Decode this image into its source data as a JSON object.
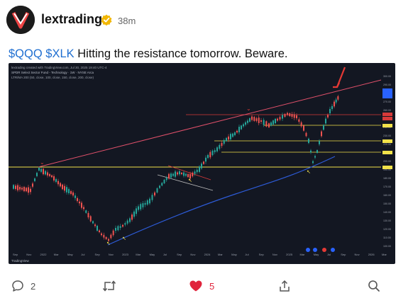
{
  "post": {
    "username": "lextrading",
    "time_ago": "38m",
    "tickers": [
      "$QQQ",
      "$XLK"
    ],
    "text": "Hitting the resistance tomorrow. Beware."
  },
  "chart_image": {
    "header_line_1": "lextrading created with TradingView.com, Jul 30, 2025 19:40 UTC-4",
    "header_line_2": "SPDR Select Sector Fund - Technology  ·  1W  ·  NYSE Arca",
    "header_line_3": "LTR/MA 200 (50, close, 100, close, 150, close, 200, close)",
    "footer_brand": "TradingView",
    "x_ticks": [
      "Sep",
      "Nov",
      "2022",
      "Mar",
      "May",
      "Jul",
      "Sep",
      "Nov",
      "2023",
      "Mar",
      "May",
      "Jul",
      "Sep",
      "Nov",
      "2024",
      "Mar",
      "May",
      "Jul",
      "Sep",
      "Nov",
      "2025",
      "Mar",
      "May",
      "Jul",
      "Sep",
      "Nov",
      "2026",
      "Mar"
    ],
    "price_labels": [
      "300.00",
      "290.00",
      "280.00",
      "270.00",
      "260.00",
      "250.00",
      "240.00",
      "230.00",
      "220.00",
      "210.00",
      "200.00",
      "190.00",
      "180.00",
      "170.00",
      "160.00",
      "150.00",
      "140.00",
      "130.00",
      "120.00",
      "110.00",
      "100.00"
    ],
    "colors": {
      "up": "#26a69a",
      "down": "#ef5350",
      "resistance": "#e0506a",
      "levels": "#f2e24a",
      "ma": "#2d5bd7",
      "annotation": "#e53935",
      "pointer": "#f2e24a"
    }
  },
  "actions": {
    "replies": "2",
    "reposts": "",
    "likes": "5",
    "colors": {
      "liked": "#e0243c",
      "muted": "#555555"
    }
  }
}
